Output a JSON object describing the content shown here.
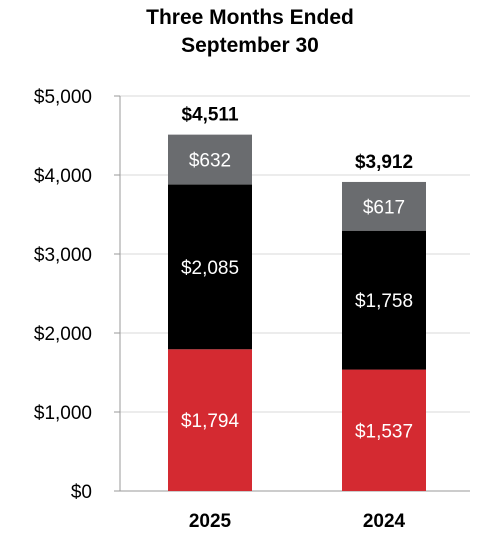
{
  "chart_data": {
    "type": "bar",
    "stacked": true,
    "title_lines": [
      "Three Months Ended",
      "September 30"
    ],
    "categories": [
      "2025",
      "2024"
    ],
    "series": [
      {
        "values": [
          1794,
          1537
        ],
        "labels": [
          "$1,794",
          "$1,537"
        ],
        "color": "#d42a31"
      },
      {
        "values": [
          2085,
          1758
        ],
        "labels": [
          "$2,085",
          "$1,758"
        ],
        "color": "#000000"
      },
      {
        "values": [
          632,
          617
        ],
        "labels": [
          "$632",
          "$617"
        ],
        "color": "#6a6c6f"
      }
    ],
    "totals": [
      4511,
      3912
    ],
    "total_labels": [
      "$4,511",
      "$3,912"
    ],
    "y_ticks": [
      0,
      1000,
      2000,
      3000,
      4000,
      5000
    ],
    "y_tick_labels": [
      "$0",
      "$1,000",
      "$2,000",
      "$3,000",
      "$4,000",
      "$5,000"
    ],
    "ylim": [
      0,
      5000
    ],
    "grid": true
  }
}
